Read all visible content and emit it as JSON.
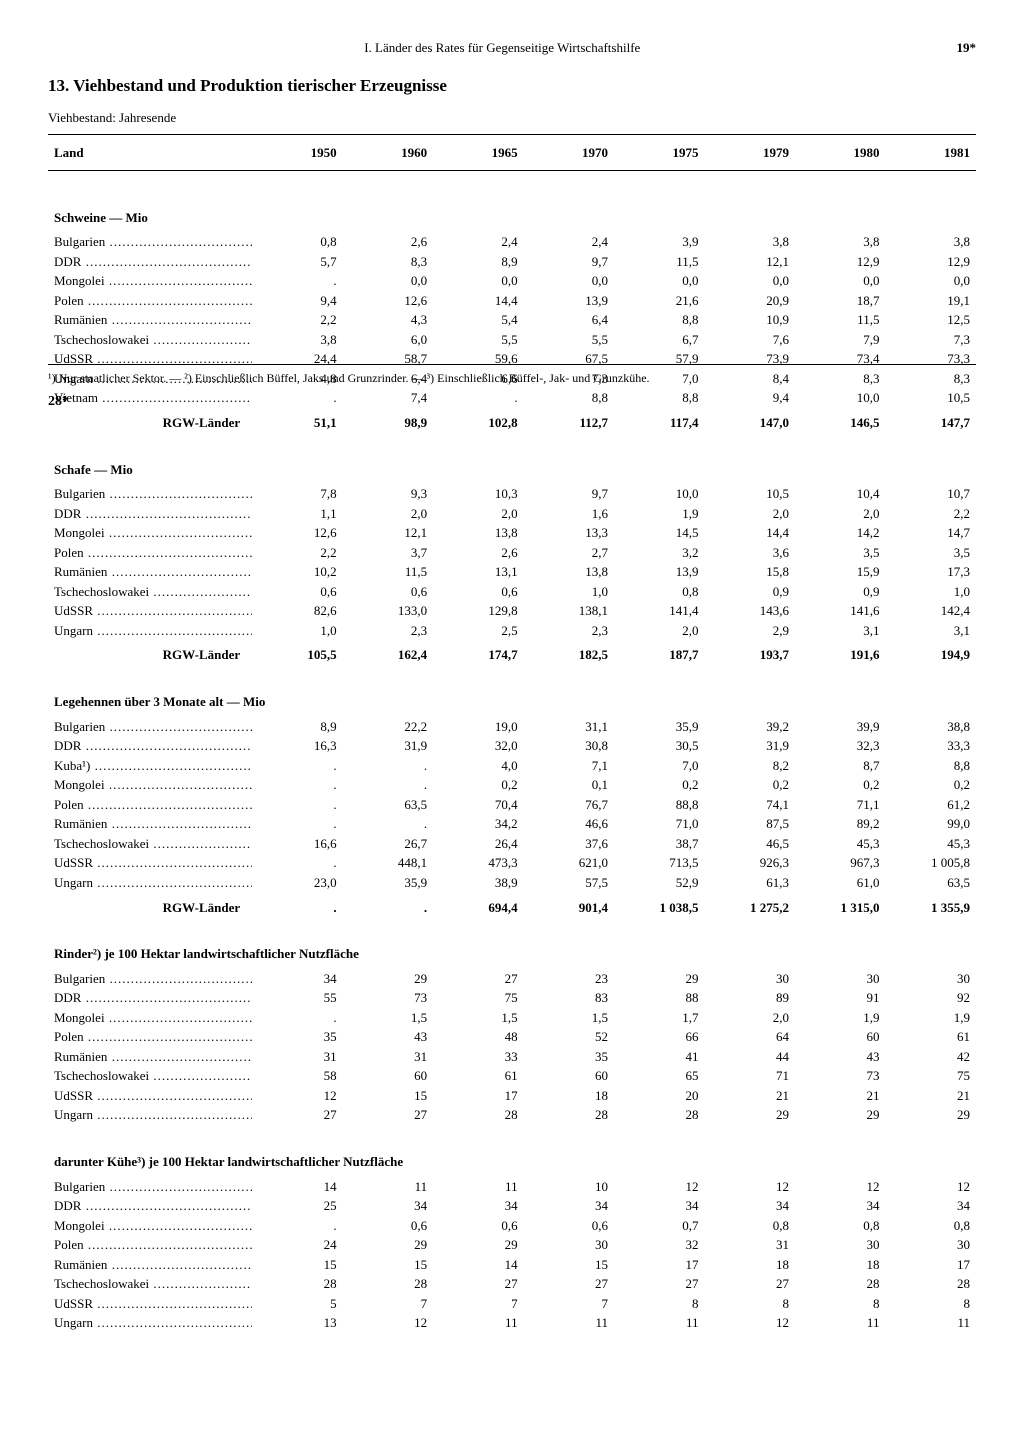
{
  "header": {
    "chapter": "I. Länder des Rates für Gegenseitige Wirtschaftshilfe",
    "page_top": "19*"
  },
  "title": {
    "num": "13.",
    "text": "Viehbestand und Produktion tierischer Erzeugnisse"
  },
  "subtitle": "Viehbestand: Jahresende",
  "columns": [
    "Land",
    "1950",
    "1960",
    "1965",
    "1970",
    "1975",
    "1979",
    "1980",
    "1981"
  ],
  "sections": [
    {
      "title": "Schweine — Mio",
      "rows": [
        {
          "name": "Bulgarien",
          "v": [
            "0,8",
            "2,6",
            "2,4",
            "2,4",
            "3,9",
            "3,8",
            "3,8",
            "3,8"
          ]
        },
        {
          "name": "DDR",
          "v": [
            "5,7",
            "8,3",
            "8,9",
            "9,7",
            "11,5",
            "12,1",
            "12,9",
            "12,9"
          ]
        },
        {
          "name": "Mongolei",
          "v": [
            ".",
            "0,0",
            "0,0",
            "0,0",
            "0,0",
            "0,0",
            "0,0",
            "0,0"
          ]
        },
        {
          "name": "Polen",
          "v": [
            "9,4",
            "12,6",
            "14,4",
            "13,9",
            "21,6",
            "20,9",
            "18,7",
            "19,1"
          ]
        },
        {
          "name": "Rumänien",
          "v": [
            "2,2",
            "4,3",
            "5,4",
            "6,4",
            "8,8",
            "10,9",
            "11,5",
            "12,5"
          ]
        },
        {
          "name": "Tschechoslowakei",
          "v": [
            "3,8",
            "6,0",
            "5,5",
            "5,5",
            "6,7",
            "7,6",
            "7,9",
            "7,3"
          ]
        },
        {
          "name": "UdSSR",
          "v": [
            "24,4",
            "58,7",
            "59,6",
            "67,5",
            "57,9",
            "73,9",
            "73,4",
            "73,3"
          ]
        },
        {
          "name": "Ungarn",
          "v": [
            "4,8",
            "6,4",
            "6,6",
            "7,3",
            "7,0",
            "8,4",
            "8,3",
            "8,3"
          ]
        },
        {
          "name": "Vietnam",
          "v": [
            ".",
            "7,4",
            ".",
            "8,8",
            "8,8",
            "9,4",
            "10,0",
            "10,5"
          ]
        }
      ],
      "total": {
        "label": "RGW-Länder",
        "v": [
          "51,1",
          "98,9",
          "102,8",
          "112,7",
          "117,4",
          "147,0",
          "146,5",
          "147,7"
        ]
      }
    },
    {
      "title": "Schafe — Mio",
      "rows": [
        {
          "name": "Bulgarien",
          "v": [
            "7,8",
            "9,3",
            "10,3",
            "9,7",
            "10,0",
            "10,5",
            "10,4",
            "10,7"
          ]
        },
        {
          "name": "DDR",
          "v": [
            "1,1",
            "2,0",
            "2,0",
            "1,6",
            "1,9",
            "2,0",
            "2,0",
            "2,2"
          ]
        },
        {
          "name": "Mongolei",
          "v": [
            "12,6",
            "12,1",
            "13,8",
            "13,3",
            "14,5",
            "14,4",
            "14,2",
            "14,7"
          ]
        },
        {
          "name": "Polen",
          "v": [
            "2,2",
            "3,7",
            "2,6",
            "2,7",
            "3,2",
            "3,6",
            "3,5",
            "3,5"
          ]
        },
        {
          "name": "Rumänien",
          "v": [
            "10,2",
            "11,5",
            "13,1",
            "13,8",
            "13,9",
            "15,8",
            "15,9",
            "17,3"
          ]
        },
        {
          "name": "Tschechoslowakei",
          "v": [
            "0,6",
            "0,6",
            "0,6",
            "1,0",
            "0,8",
            "0,9",
            "0,9",
            "1,0"
          ]
        },
        {
          "name": "UdSSR",
          "v": [
            "82,6",
            "133,0",
            "129,8",
            "138,1",
            "141,4",
            "143,6",
            "141,6",
            "142,4"
          ]
        },
        {
          "name": "Ungarn",
          "v": [
            "1,0",
            "2,3",
            "2,5",
            "2,3",
            "2,0",
            "2,9",
            "3,1",
            "3,1"
          ]
        }
      ],
      "total": {
        "label": "RGW-Länder",
        "v": [
          "105,5",
          "162,4",
          "174,7",
          "182,5",
          "187,7",
          "193,7",
          "191,6",
          "194,9"
        ]
      }
    },
    {
      "title": "Legehennen über 3 Monate alt — Mio",
      "rows": [
        {
          "name": "Bulgarien",
          "v": [
            "8,9",
            "22,2",
            "19,0",
            "31,1",
            "35,9",
            "39,2",
            "39,9",
            "38,8"
          ]
        },
        {
          "name": "DDR",
          "v": [
            "16,3",
            "31,9",
            "32,0",
            "30,8",
            "30,5",
            "31,9",
            "32,3",
            "33,3"
          ]
        },
        {
          "name": "Kuba¹)",
          "v": [
            ".",
            ".",
            "4,0",
            "7,1",
            "7,0",
            "8,2",
            "8,7",
            "8,8"
          ]
        },
        {
          "name": "Mongolei",
          "v": [
            ".",
            ".",
            "0,2",
            "0,1",
            "0,2",
            "0,2",
            "0,2",
            "0,2"
          ]
        },
        {
          "name": "Polen",
          "v": [
            ".",
            "63,5",
            "70,4",
            "76,7",
            "88,8",
            "74,1",
            "71,1",
            "61,2"
          ]
        },
        {
          "name": "Rumänien",
          "v": [
            ".",
            ".",
            "34,2",
            "46,6",
            "71,0",
            "87,5",
            "89,2",
            "99,0"
          ]
        },
        {
          "name": "Tschechoslowakei",
          "v": [
            "16,6",
            "26,7",
            "26,4",
            "37,6",
            "38,7",
            "46,5",
            "45,3",
            "45,3"
          ]
        },
        {
          "name": "UdSSR",
          "v": [
            ".",
            "448,1",
            "473,3",
            "621,0",
            "713,5",
            "926,3",
            "967,3",
            "1 005,8"
          ]
        },
        {
          "name": "Ungarn",
          "v": [
            "23,0",
            "35,9",
            "38,9",
            "57,5",
            "52,9",
            "61,3",
            "61,0",
            "63,5"
          ]
        }
      ],
      "total": {
        "label": "RGW-Länder",
        "v": [
          ".",
          ".",
          "694,4",
          "901,4",
          "1 038,5",
          "1 275,2",
          "1 315,0",
          "1 355,9"
        ]
      }
    },
    {
      "title": "Rinder²) je 100 Hektar landwirtschaftlicher Nutzfläche",
      "rows": [
        {
          "name": "Bulgarien",
          "v": [
            "34",
            "29",
            "27",
            "23",
            "29",
            "30",
            "30",
            "30"
          ]
        },
        {
          "name": "DDR",
          "v": [
            "55",
            "73",
            "75",
            "83",
            "88",
            "89",
            "91",
            "92"
          ]
        },
        {
          "name": "Mongolei",
          "v": [
            ".",
            "1,5",
            "1,5",
            "1,5",
            "1,7",
            "2,0",
            "1,9",
            "1,9"
          ]
        },
        {
          "name": "Polen",
          "v": [
            "35",
            "43",
            "48",
            "52",
            "66",
            "64",
            "60",
            "61"
          ]
        },
        {
          "name": "Rumänien",
          "v": [
            "31",
            "31",
            "33",
            "35",
            "41",
            "44",
            "43",
            "42"
          ]
        },
        {
          "name": "Tschechoslowakei",
          "v": [
            "58",
            "60",
            "61",
            "60",
            "65",
            "71",
            "73",
            "75"
          ]
        },
        {
          "name": "UdSSR",
          "v": [
            "12",
            "15",
            "17",
            "18",
            "20",
            "21",
            "21",
            "21"
          ]
        },
        {
          "name": "Ungarn",
          "v": [
            "27",
            "27",
            "28",
            "28",
            "28",
            "29",
            "29",
            "29"
          ]
        }
      ]
    },
    {
      "title": "darunter Kühe³) je 100 Hektar landwirtschaftlicher Nutzfläche",
      "rows": [
        {
          "name": "Bulgarien",
          "v": [
            "14",
            "11",
            "11",
            "10",
            "12",
            "12",
            "12",
            "12"
          ]
        },
        {
          "name": "DDR",
          "v": [
            "25",
            "34",
            "34",
            "34",
            "34",
            "34",
            "34",
            "34"
          ]
        },
        {
          "name": "Mongolei",
          "v": [
            ".",
            "0,6",
            "0,6",
            "0,6",
            "0,7",
            "0,8",
            "0,8",
            "0,8"
          ]
        },
        {
          "name": "Polen",
          "v": [
            "24",
            "29",
            "29",
            "30",
            "32",
            "31",
            "30",
            "30"
          ]
        },
        {
          "name": "Rumänien",
          "v": [
            "15",
            "15",
            "14",
            "15",
            "17",
            "18",
            "18",
            "17"
          ]
        },
        {
          "name": "Tschechoslowakei",
          "v": [
            "28",
            "28",
            "27",
            "27",
            "27",
            "27",
            "28",
            "28"
          ]
        },
        {
          "name": "UdSSR",
          "v": [
            "5",
            "7",
            "7",
            "7",
            "8",
            "8",
            "8",
            "8"
          ]
        },
        {
          "name": "Ungarn",
          "v": [
            "13",
            "12",
            "11",
            "11",
            "11",
            "12",
            "11",
            "11"
          ]
        }
      ]
    }
  ],
  "footnotes": "¹) Nur staatlicher Sektor. — ²) Einschließlich Büffel, Jaks und Grunzrinder. — ³) Einschließlich Büffel-, Jak- und Grunzkühe.",
  "page_bottom": "28*"
}
